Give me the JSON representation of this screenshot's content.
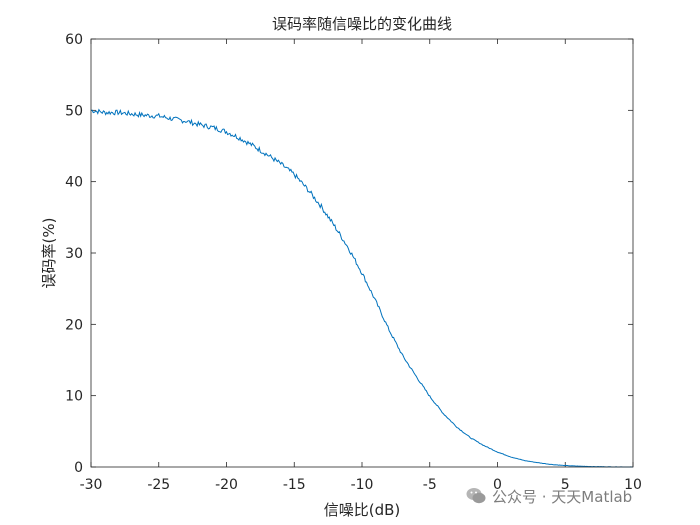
{
  "chart_data": {
    "type": "line",
    "title": "误码率随信噪比的变化曲线",
    "xlabel": "信噪比(dB)",
    "ylabel": "误码率(%)",
    "xlim": [
      -30,
      10
    ],
    "ylim": [
      0,
      60
    ],
    "xticks": [
      -30,
      -25,
      -20,
      -15,
      -10,
      -5,
      0,
      5,
      10
    ],
    "yticks": [
      0,
      10,
      20,
      30,
      40,
      50,
      60
    ],
    "grid": false,
    "series": [
      {
        "color": "#0072BD",
        "x": [
          -30,
          -29,
          -28,
          -27,
          -26,
          -25,
          -24,
          -23,
          -22,
          -21,
          -20,
          -19,
          -18,
          -17,
          -16,
          -15,
          -14,
          -13,
          -12,
          -11,
          -10,
          -9,
          -8,
          -7,
          -6,
          -5,
          -4,
          -3,
          -2,
          -1,
          0,
          1,
          2,
          3,
          4,
          5,
          6,
          7,
          8,
          9,
          10
        ],
        "y": [
          50.0,
          49.7,
          49.7,
          49.5,
          49.3,
          49.2,
          48.8,
          48.5,
          48.0,
          47.6,
          47.0,
          46.1,
          45.0,
          43.8,
          42.5,
          41.0,
          38.9,
          36.5,
          33.7,
          30.7,
          27.2,
          23.3,
          19.2,
          15.6,
          12.7,
          9.9,
          7.5,
          5.6,
          4.1,
          3.0,
          2.1,
          1.4,
          0.9,
          0.6,
          0.35,
          0.2,
          0.12,
          0.06,
          0.03,
          0.01,
          0.0
        ]
      }
    ]
  },
  "watermark": {
    "text": "公众号 · 天天Matlab",
    "icon": "wechat-icon"
  }
}
